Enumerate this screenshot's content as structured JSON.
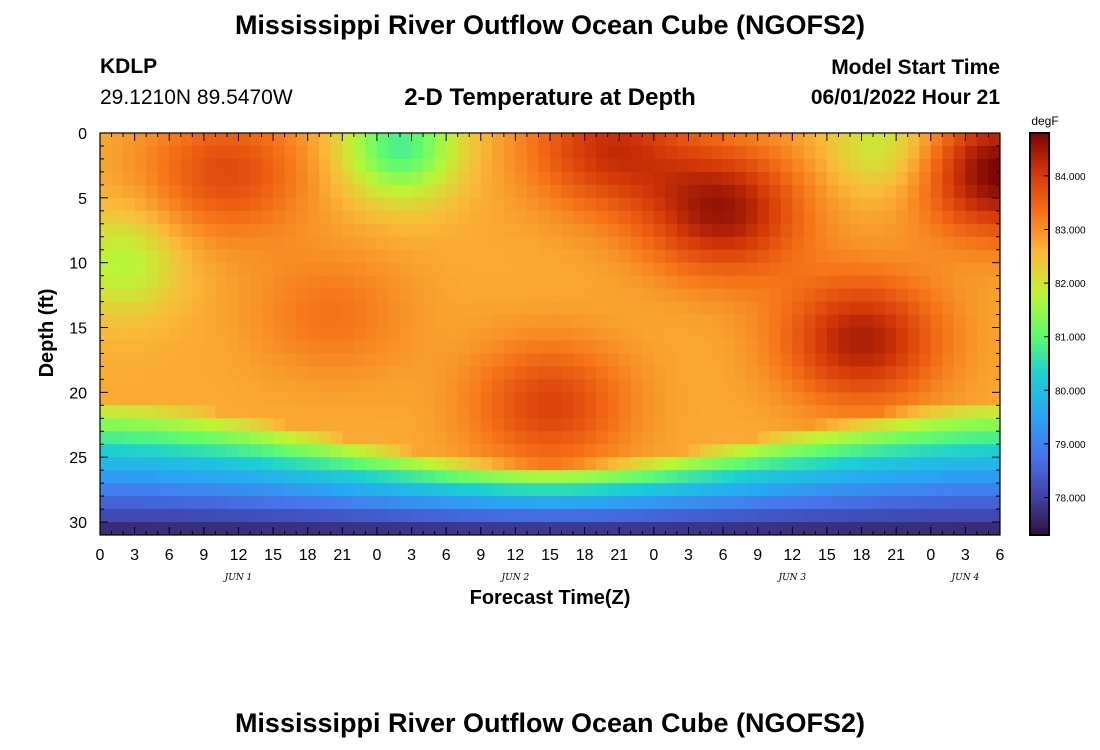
{
  "header": {
    "title": "Mississippi River Outflow Ocean Cube (NGOFS2)",
    "station_id": "KDLP",
    "station_coords": "29.1210N  89.5470W",
    "plot_subtitle": "2-D Temperature at Depth",
    "model_start_label": "Model Start Time",
    "model_start_time": "06/01/2022 Hour 21"
  },
  "footer": {
    "title": "Mississippi River Outflow Ocean Cube (NGOFS2)"
  },
  "chart_data": {
    "type": "heatmap",
    "xlabel": "Forecast Time(Z)",
    "ylabel": "Depth (ft)",
    "x_tick_labels": [
      "0",
      "3",
      "6",
      "9",
      "12",
      "15",
      "18",
      "21",
      "0",
      "3",
      "6",
      "9",
      "12",
      "15",
      "18",
      "21",
      "0",
      "3",
      "6",
      "9",
      "12",
      "15",
      "18",
      "21",
      "0",
      "3",
      "6"
    ],
    "x_range_hours": [
      0,
      78
    ],
    "date_labels": [
      {
        "label": "JUN 1",
        "hour": 12
      },
      {
        "label": "JUN 2",
        "hour": 36
      },
      {
        "label": "JUN 3",
        "hour": 60
      },
      {
        "label": "JUN 4",
        "hour": 75
      }
    ],
    "y_ticks": [
      0,
      5,
      10,
      15,
      20,
      25,
      30
    ],
    "y_range": [
      0,
      31
    ],
    "y_inverted": true,
    "colorbar": {
      "unit": "degF",
      "tick_labels": [
        "84.000",
        "83.000",
        "82.000",
        "81.000",
        "80.000",
        "79.000",
        "78.000"
      ],
      "range": [
        77.3,
        84.8
      ],
      "colormap": "turbo"
    },
    "field_description": {
      "warm_cores": [
        {
          "hour": 11,
          "depth": 3,
          "value": 83.8
        },
        {
          "hour": 20,
          "depth": 14,
          "value": 83.3
        },
        {
          "hour": 39,
          "depth": 21,
          "value": 83.9
        },
        {
          "hour": 44,
          "depth": 1,
          "value": 84.1
        },
        {
          "hour": 54,
          "depth": 6,
          "value": 84.5
        },
        {
          "hour": 66,
          "depth": 16,
          "value": 84.4
        },
        {
          "hour": 78,
          "depth": 3,
          "value": 84.8
        }
      ],
      "cool_cores": [
        {
          "hour": 26,
          "depth": 1,
          "value": 80.8
        },
        {
          "hour": 2,
          "depth": 10,
          "value": 81.7
        },
        {
          "hour": 68,
          "depth": 1,
          "value": 81.8
        }
      ],
      "bottom_layer": {
        "depth_from": 25,
        "value_at_bottom": 77.5
      }
    },
    "grid": false
  }
}
